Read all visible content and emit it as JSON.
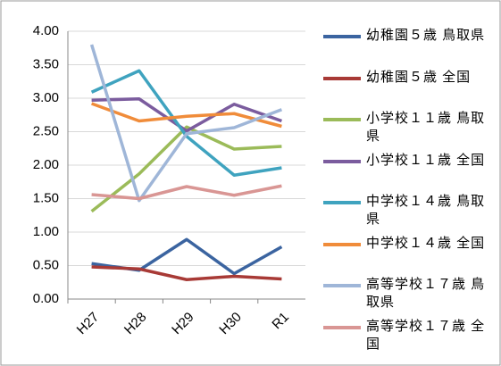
{
  "chart_data": {
    "type": "line",
    "categories": [
      "H27",
      "H28",
      "H29",
      "H30",
      "R1"
    ],
    "series": [
      {
        "name": "幼稚園５歳 鳥取県",
        "color": "#3b64a0",
        "values": [
          0.53,
          0.43,
          0.89,
          0.38,
          0.78
        ]
      },
      {
        "name": "幼稚園５歳 全国",
        "color": "#a83a36",
        "values": [
          0.48,
          0.45,
          0.29,
          0.34,
          0.3
        ]
      },
      {
        "name": "小学校１１歳 鳥取県",
        "color": "#9bbb59",
        "values": [
          1.31,
          1.87,
          2.57,
          2.24,
          2.28
        ]
      },
      {
        "name": "小学校１１歳 全国",
        "color": "#7b5c9e",
        "values": [
          2.97,
          2.99,
          2.51,
          2.91,
          2.66
        ]
      },
      {
        "name": "中学校１４歳 鳥取県",
        "color": "#3fa3bf",
        "values": [
          3.09,
          3.41,
          2.43,
          1.85,
          1.96
        ]
      },
      {
        "name": "中学校１４歳 全国",
        "color": "#f08c3a",
        "values": [
          2.92,
          2.66,
          2.73,
          2.77,
          2.58
        ]
      },
      {
        "name": "高等学校１７歳 鳥取県",
        "color": "#9fb6d8",
        "values": [
          3.8,
          1.47,
          2.47,
          2.56,
          2.83
        ]
      },
      {
        "name": "高等学校１７歳 全国",
        "color": "#d99694",
        "values": [
          1.56,
          1.5,
          1.68,
          1.55,
          1.69
        ]
      }
    ],
    "ylim": [
      0,
      4
    ],
    "yticks": [
      {
        "value": 0,
        "label": "0.00"
      },
      {
        "value": 0.5,
        "label": "0.50"
      },
      {
        "value": 1,
        "label": "1.00"
      },
      {
        "value": 1.5,
        "label": "1.50"
      },
      {
        "value": 2,
        "label": "2.00"
      },
      {
        "value": 2.5,
        "label": "2.50"
      },
      {
        "value": 3,
        "label": "3.00"
      },
      {
        "value": 3.5,
        "label": "3.50"
      },
      {
        "value": 4,
        "label": "4.00"
      }
    ],
    "grid": true,
    "legend": "right"
  }
}
